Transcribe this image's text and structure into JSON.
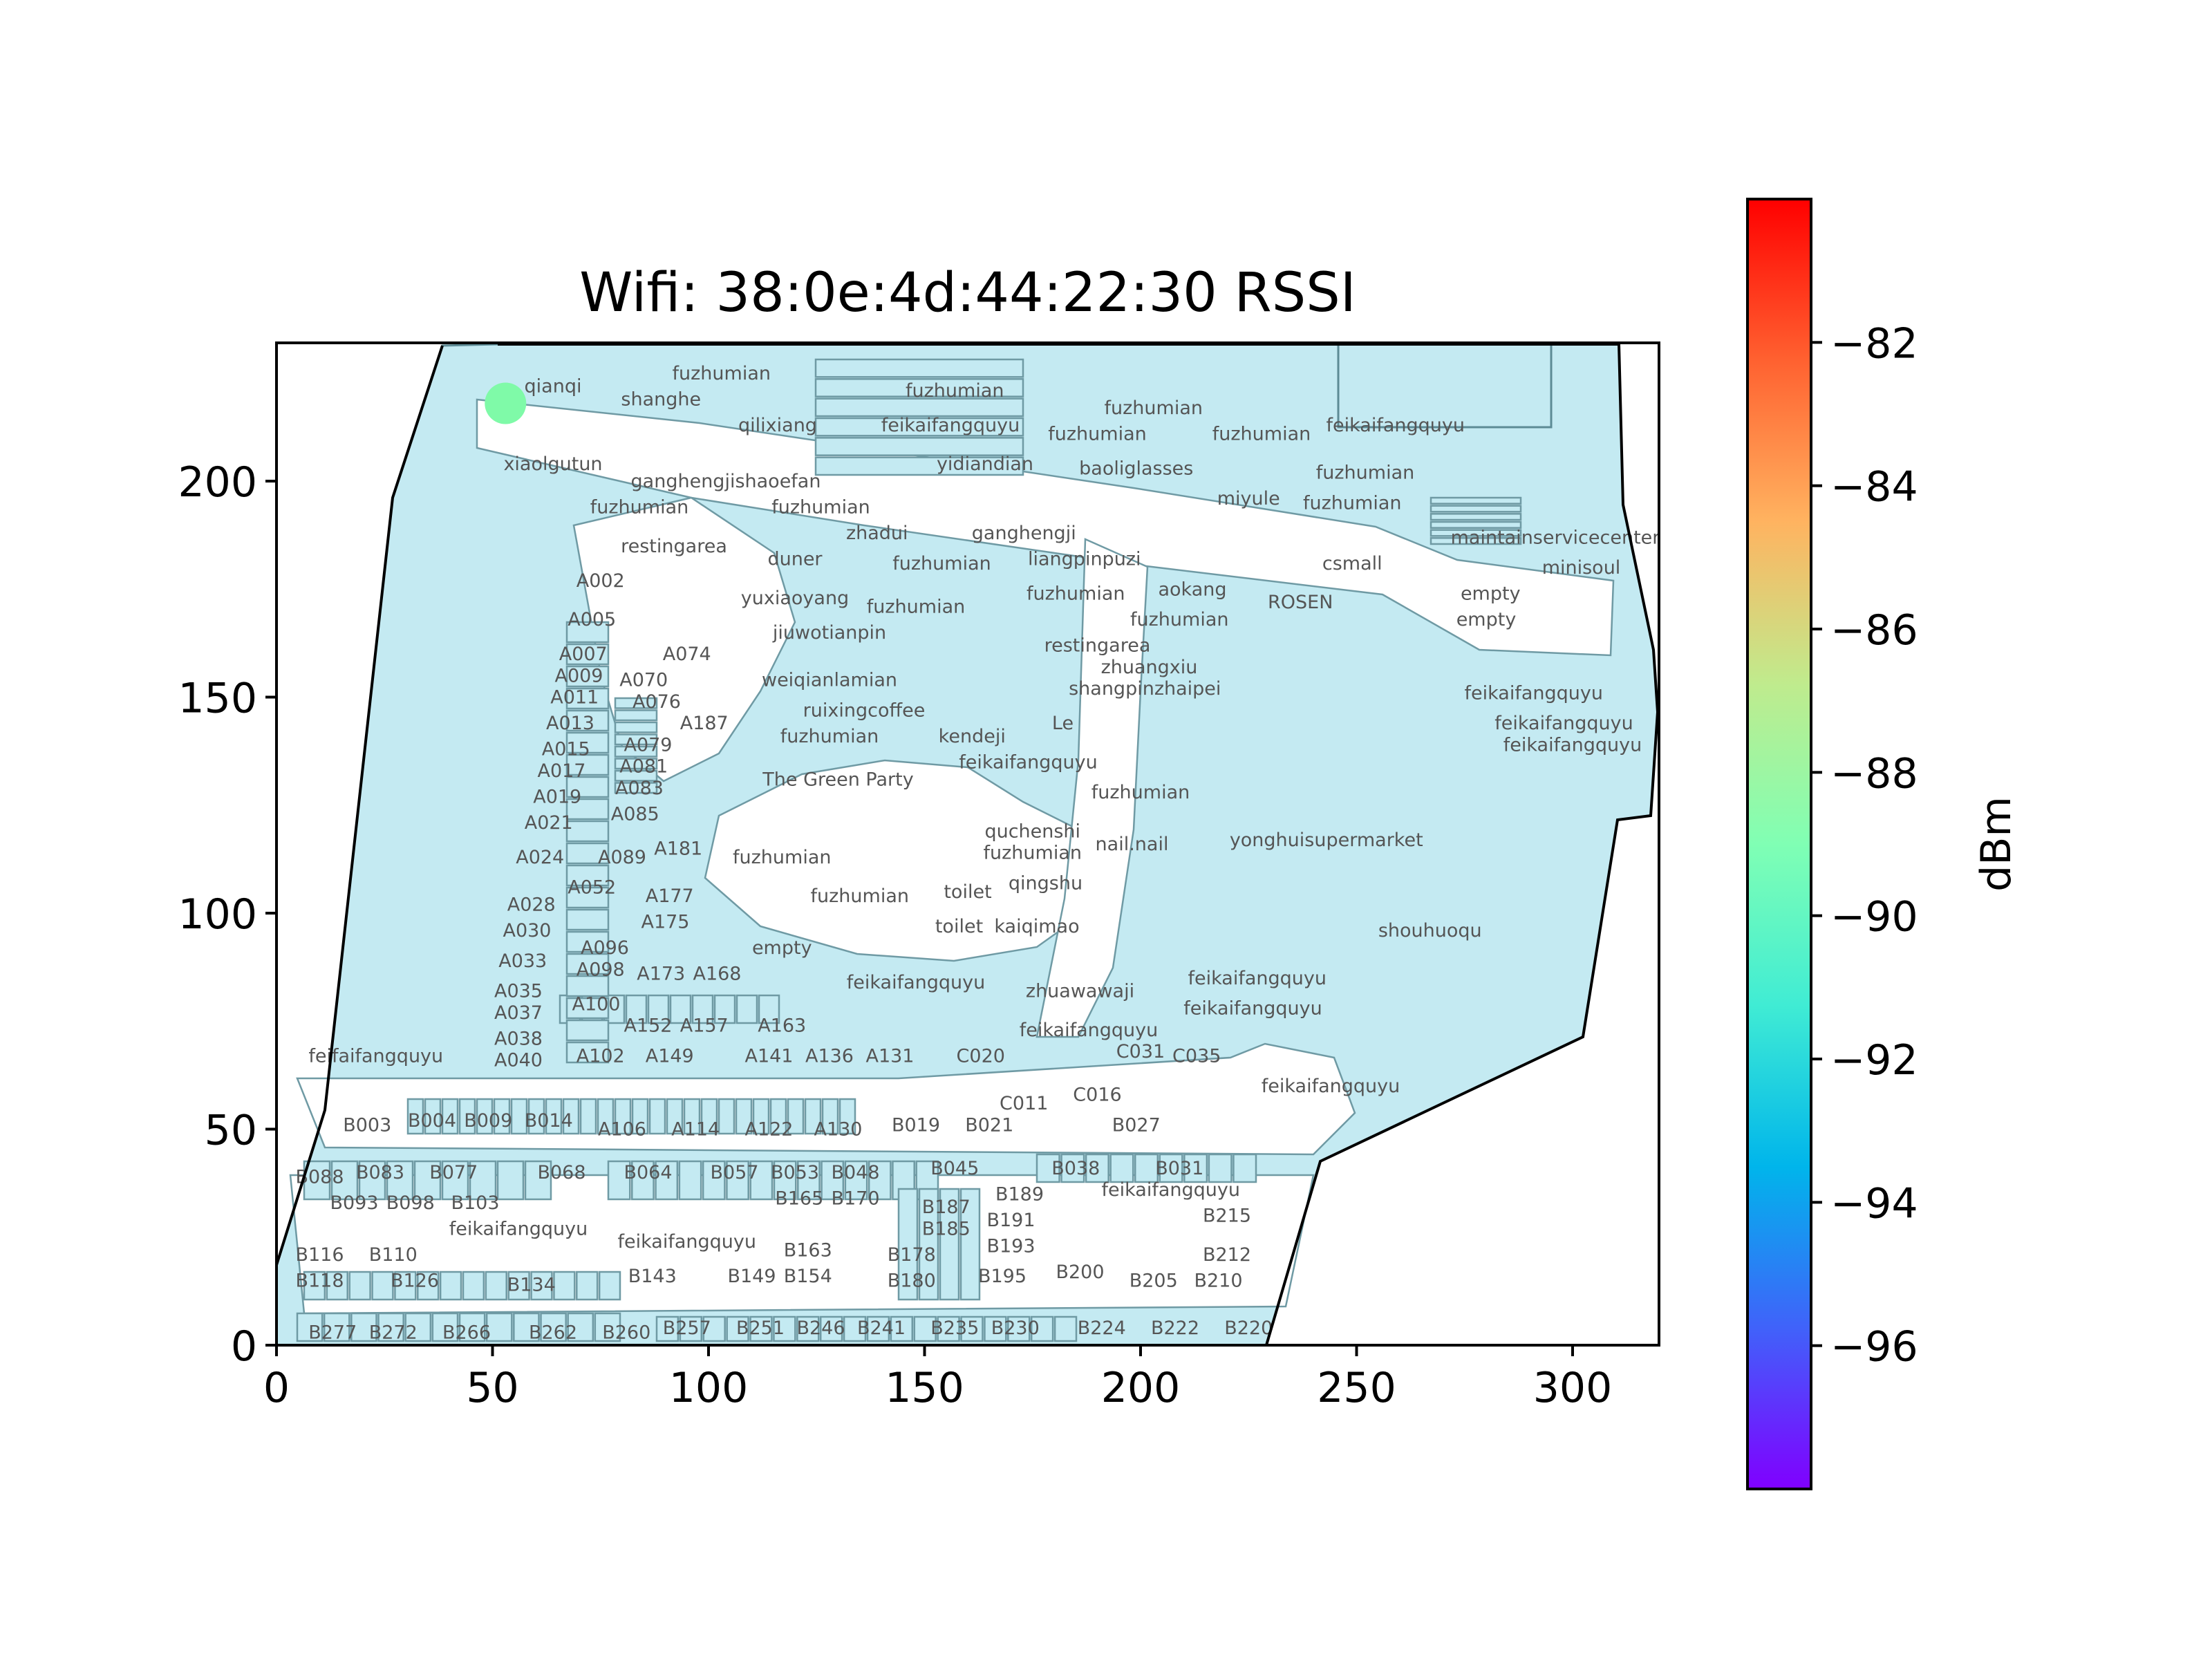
{
  "chart_data": {
    "type": "heatmap",
    "title": "Wifi: 38:0e:4d:44:22:30 RSSI",
    "xlim": [
      0,
      320
    ],
    "ylim": [
      0,
      232
    ],
    "x_ticks": [
      "0",
      "50",
      "100",
      "150",
      "200",
      "250",
      "300"
    ],
    "y_ticks": [
      "0",
      "50",
      "100",
      "150",
      "200"
    ],
    "colorbar": {
      "label": "dBm",
      "range": [
        -98,
        -80
      ],
      "ticks": [
        "−82",
        "−84",
        "−86",
        "−88",
        "−90",
        "−92",
        "−94",
        "−96"
      ],
      "colormap": "rainbow"
    },
    "points": [
      {
        "x": 53,
        "y": 218,
        "rssi": -89.5,
        "color": "#7ffaa8"
      }
    ],
    "shops": [
      {
        "label": "qianqi",
        "x": 64,
        "y": 222
      },
      {
        "label": "fuzhumian",
        "x": 103,
        "y": 225
      },
      {
        "label": "shanghe",
        "x": 89,
        "y": 219
      },
      {
        "label": "qilixiang",
        "x": 116,
        "y": 213
      },
      {
        "label": "fuzhumian",
        "x": 157,
        "y": 221
      },
      {
        "label": "feikaifangquyu",
        "x": 156,
        "y": 213
      },
      {
        "label": "fuzhumian",
        "x": 203,
        "y": 217
      },
      {
        "label": "fuzhumian",
        "x": 190,
        "y": 211
      },
      {
        "label": "fuzhumian",
        "x": 228,
        "y": 211
      },
      {
        "label": "feikaifangquyu",
        "x": 259,
        "y": 213
      },
      {
        "label": "xiaolgutun",
        "x": 64,
        "y": 204
      },
      {
        "label": "yidiandian",
        "x": 164,
        "y": 204
      },
      {
        "label": "baoliglasses",
        "x": 199,
        "y": 203
      },
      {
        "label": "ganghengjishaoefan",
        "x": 104,
        "y": 200
      },
      {
        "label": "fuzhumian",
        "x": 252,
        "y": 202
      },
      {
        "label": "fuzhumian",
        "x": 84,
        "y": 194
      },
      {
        "label": "fuzhumian",
        "x": 126,
        "y": 194
      },
      {
        "label": "miyule",
        "x": 225,
        "y": 196
      },
      {
        "label": "fuzhumian",
        "x": 249,
        "y": 195
      },
      {
        "label": "zhadui",
        "x": 139,
        "y": 188
      },
      {
        "label": "ganghengji",
        "x": 173,
        "y": 188
      },
      {
        "label": "maintainservicecenter",
        "x": 296,
        "y": 187
      },
      {
        "label": "restingarea",
        "x": 92,
        "y": 185
      },
      {
        "label": "liangpinpuzi",
        "x": 187,
        "y": 182
      },
      {
        "label": "duner",
        "x": 120,
        "y": 182
      },
      {
        "label": "fuzhumian",
        "x": 154,
        "y": 181
      },
      {
        "label": "csmall",
        "x": 249,
        "y": 181
      },
      {
        "label": "minisoul",
        "x": 302,
        "y": 180
      },
      {
        "label": "A002",
        "x": 75,
        "y": 177
      },
      {
        "label": "yuxiaoyang",
        "x": 120,
        "y": 173
      },
      {
        "label": "fuzhumian",
        "x": 185,
        "y": 174
      },
      {
        "label": "aokang",
        "x": 212,
        "y": 175
      },
      {
        "label": "empty",
        "x": 281,
        "y": 174
      },
      {
        "label": "fuzhumian",
        "x": 148,
        "y": 171
      },
      {
        "label": "ROSEN",
        "x": 237,
        "y": 172
      },
      {
        "label": "A005",
        "x": 73,
        "y": 168
      },
      {
        "label": "fuzhumian",
        "x": 209,
        "y": 168
      },
      {
        "label": "empty",
        "x": 280,
        "y": 168
      },
      {
        "label": "jiuwotianpin",
        "x": 128,
        "y": 165
      },
      {
        "label": "restingarea",
        "x": 190,
        "y": 162
      },
      {
        "label": "A007",
        "x": 71,
        "y": 160
      },
      {
        "label": "A074",
        "x": 95,
        "y": 160
      },
      {
        "label": "zhuangxiu",
        "x": 202,
        "y": 157
      },
      {
        "label": "A009",
        "x": 70,
        "y": 155
      },
      {
        "label": "A070",
        "x": 85,
        "y": 154
      },
      {
        "label": "weiqianlamian",
        "x": 128,
        "y": 154
      },
      {
        "label": "shangpinzhaipei",
        "x": 201,
        "y": 152
      },
      {
        "label": "feikaifangquyu",
        "x": 291,
        "y": 151
      },
      {
        "label": "A011",
        "x": 69,
        "y": 150
      },
      {
        "label": "A076",
        "x": 88,
        "y": 149
      },
      {
        "label": "ruixingcoffee",
        "x": 136,
        "y": 147
      },
      {
        "label": "A013",
        "x": 68,
        "y": 144
      },
      {
        "label": "A187",
        "x": 99,
        "y": 144
      },
      {
        "label": "Le",
        "x": 182,
        "y": 144
      },
      {
        "label": "feikaifangquyu",
        "x": 298,
        "y": 144
      },
      {
        "label": "fuzhumian",
        "x": 128,
        "y": 141
      },
      {
        "label": "kendeji",
        "x": 161,
        "y": 141
      },
      {
        "label": "A079",
        "x": 86,
        "y": 139
      },
      {
        "label": "A015",
        "x": 67,
        "y": 138
      },
      {
        "label": "feikaifangquyu",
        "x": 300,
        "y": 139
      },
      {
        "label": "feikaifangquyu",
        "x": 174,
        "y": 135
      },
      {
        "label": "A081",
        "x": 85,
        "y": 134
      },
      {
        "label": "A017",
        "x": 66,
        "y": 133
      },
      {
        "label": "The Green Party",
        "x": 130,
        "y": 131
      },
      {
        "label": "A083",
        "x": 84,
        "y": 129
      },
      {
        "label": "fuzhumian",
        "x": 200,
        "y": 128
      },
      {
        "label": "A019",
        "x": 65,
        "y": 127
      },
      {
        "label": "A085",
        "x": 83,
        "y": 123
      },
      {
        "label": "A021",
        "x": 63,
        "y": 121
      },
      {
        "label": "quchenshi",
        "x": 175,
        "y": 119
      },
      {
        "label": "nail.nail",
        "x": 198,
        "y": 116
      },
      {
        "label": "yonghuisupermarket",
        "x": 243,
        "y": 117
      },
      {
        "label": "fuzhumian",
        "x": 175,
        "y": 114
      },
      {
        "label": "A181",
        "x": 93,
        "y": 115
      },
      {
        "label": "A024",
        "x": 61,
        "y": 113
      },
      {
        "label": "A089",
        "x": 80,
        "y": 113
      },
      {
        "label": "fuzhumian",
        "x": 117,
        "y": 113
      },
      {
        "label": "qingshu",
        "x": 178,
        "y": 107
      },
      {
        "label": "A052",
        "x": 73,
        "y": 106
      },
      {
        "label": "A177",
        "x": 91,
        "y": 104
      },
      {
        "label": "toilet",
        "x": 160,
        "y": 105
      },
      {
        "label": "fuzhumian",
        "x": 135,
        "y": 104
      },
      {
        "label": "A028",
        "x": 59,
        "y": 102
      },
      {
        "label": "A175",
        "x": 90,
        "y": 98
      },
      {
        "label": "toilet",
        "x": 158,
        "y": 97
      },
      {
        "label": "kaiqimao",
        "x": 176,
        "y": 97
      },
      {
        "label": "shouhuoqu",
        "x": 267,
        "y": 96
      },
      {
        "label": "A030",
        "x": 58,
        "y": 96
      },
      {
        "label": "A096",
        "x": 76,
        "y": 92
      },
      {
        "label": "empty",
        "x": 117,
        "y": 92
      },
      {
        "label": "A033",
        "x": 57,
        "y": 89
      },
      {
        "label": "A098",
        "x": 75,
        "y": 87
      },
      {
        "label": "A173",
        "x": 89,
        "y": 86
      },
      {
        "label": "A168",
        "x": 102,
        "y": 86
      },
      {
        "label": "feikaifangquyu",
        "x": 148,
        "y": 84
      },
      {
        "label": "feikaifangquyu",
        "x": 227,
        "y": 85
      },
      {
        "label": "zhuawawaji",
        "x": 186,
        "y": 82
      },
      {
        "label": "A035",
        "x": 56,
        "y": 82
      },
      {
        "label": "A100",
        "x": 74,
        "y": 79
      },
      {
        "label": "feikaifangquyu",
        "x": 226,
        "y": 78
      },
      {
        "label": "A037",
        "x": 56,
        "y": 77
      },
      {
        "label": "A152",
        "x": 86,
        "y": 74
      },
      {
        "label": "A157",
        "x": 99,
        "y": 74
      },
      {
        "label": "A163",
        "x": 117,
        "y": 74
      },
      {
        "label": "feikaifangquyu",
        "x": 188,
        "y": 73
      },
      {
        "label": "A038",
        "x": 56,
        "y": 71
      },
      {
        "label": "feifaifangquyu",
        "x": 23,
        "y": 67
      },
      {
        "label": "A040",
        "x": 56,
        "y": 66
      },
      {
        "label": "A102",
        "x": 75,
        "y": 67
      },
      {
        "label": "A149",
        "x": 91,
        "y": 67
      },
      {
        "label": "A141",
        "x": 114,
        "y": 67
      },
      {
        "label": "A136",
        "x": 128,
        "y": 67
      },
      {
        "label": "A131",
        "x": 142,
        "y": 67
      },
      {
        "label": "C020",
        "x": 163,
        "y": 67
      },
      {
        "label": "C031",
        "x": 200,
        "y": 68
      },
      {
        "label": "C035",
        "x": 213,
        "y": 67
      },
      {
        "label": "feikaifangquyu",
        "x": 244,
        "y": 60
      },
      {
        "label": "C016",
        "x": 190,
        "y": 58
      },
      {
        "label": "C011",
        "x": 173,
        "y": 56
      },
      {
        "label": "B003",
        "x": 21,
        "y": 51
      },
      {
        "label": "B004",
        "x": 36,
        "y": 52
      },
      {
        "label": "B009",
        "x": 49,
        "y": 52
      },
      {
        "label": "B014",
        "x": 63,
        "y": 52
      },
      {
        "label": "A106",
        "x": 80,
        "y": 50
      },
      {
        "label": "A114",
        "x": 97,
        "y": 50
      },
      {
        "label": "A122",
        "x": 114,
        "y": 50
      },
      {
        "label": "A130",
        "x": 130,
        "y": 50
      },
      {
        "label": "B019",
        "x": 148,
        "y": 51
      },
      {
        "label": "B021",
        "x": 165,
        "y": 51
      },
      {
        "label": "B027",
        "x": 199,
        "y": 51
      },
      {
        "label": "B045",
        "x": 157,
        "y": 41
      },
      {
        "label": "B038",
        "x": 185,
        "y": 41
      },
      {
        "label": "B031",
        "x": 209,
        "y": 41
      },
      {
        "label": "B088",
        "x": 10,
        "y": 39
      },
      {
        "label": "B083",
        "x": 24,
        "y": 40
      },
      {
        "label": "B077",
        "x": 41,
        "y": 40
      },
      {
        "label": "B068",
        "x": 66,
        "y": 40
      },
      {
        "label": "B064",
        "x": 86,
        "y": 40
      },
      {
        "label": "B057",
        "x": 106,
        "y": 40
      },
      {
        "label": "B053",
        "x": 120,
        "y": 40
      },
      {
        "label": "B048",
        "x": 134,
        "y": 40
      },
      {
        "label": "feikaifangquyu",
        "x": 207,
        "y": 36
      },
      {
        "label": "B189",
        "x": 172,
        "y": 35
      },
      {
        "label": "B165",
        "x": 121,
        "y": 34
      },
      {
        "label": "B170",
        "x": 134,
        "y": 34
      },
      {
        "label": "B093",
        "x": 18,
        "y": 33
      },
      {
        "label": "B098",
        "x": 31,
        "y": 33
      },
      {
        "label": "B103",
        "x": 46,
        "y": 33
      },
      {
        "label": "B187",
        "x": 155,
        "y": 32
      },
      {
        "label": "B215",
        "x": 220,
        "y": 30
      },
      {
        "label": "B191",
        "x": 170,
        "y": 29
      },
      {
        "label": "feikaifangquyu",
        "x": 56,
        "y": 27
      },
      {
        "label": "B185",
        "x": 155,
        "y": 27
      },
      {
        "label": "feikaifangquyu",
        "x": 95,
        "y": 24
      },
      {
        "label": "B193",
        "x": 170,
        "y": 23
      },
      {
        "label": "B163",
        "x": 123,
        "y": 22
      },
      {
        "label": "B116",
        "x": 10,
        "y": 21
      },
      {
        "label": "B110",
        "x": 27,
        "y": 21
      },
      {
        "label": "B178",
        "x": 147,
        "y": 21
      },
      {
        "label": "B212",
        "x": 220,
        "y": 21
      },
      {
        "label": "B143",
        "x": 87,
        "y": 16
      },
      {
        "label": "B149",
        "x": 110,
        "y": 16
      },
      {
        "label": "B154",
        "x": 123,
        "y": 16
      },
      {
        "label": "B195",
        "x": 168,
        "y": 16
      },
      {
        "label": "B200",
        "x": 186,
        "y": 17
      },
      {
        "label": "B118",
        "x": 10,
        "y": 15
      },
      {
        "label": "B126",
        "x": 32,
        "y": 15
      },
      {
        "label": "B180",
        "x": 147,
        "y": 15
      },
      {
        "label": "B205",
        "x": 203,
        "y": 15
      },
      {
        "label": "B210",
        "x": 218,
        "y": 15
      },
      {
        "label": "B134",
        "x": 59,
        "y": 14
      },
      {
        "label": "B277",
        "x": 13,
        "y": 3
      },
      {
        "label": "B272",
        "x": 27,
        "y": 3
      },
      {
        "label": "B266",
        "x": 44,
        "y": 3
      },
      {
        "label": "B262",
        "x": 64,
        "y": 3
      },
      {
        "label": "B260",
        "x": 81,
        "y": 3
      },
      {
        "label": "B257",
        "x": 95,
        "y": 4
      },
      {
        "label": "B251",
        "x": 112,
        "y": 4
      },
      {
        "label": "B246",
        "x": 126,
        "y": 4
      },
      {
        "label": "B241",
        "x": 140,
        "y": 4
      },
      {
        "label": "B235",
        "x": 157,
        "y": 4
      },
      {
        "label": "B230",
        "x": 171,
        "y": 4
      },
      {
        "label": "B224",
        "x": 191,
        "y": 4
      },
      {
        "label": "B222",
        "x": 208,
        "y": 4
      },
      {
        "label": "B220",
        "x": 225,
        "y": 4
      }
    ]
  }
}
